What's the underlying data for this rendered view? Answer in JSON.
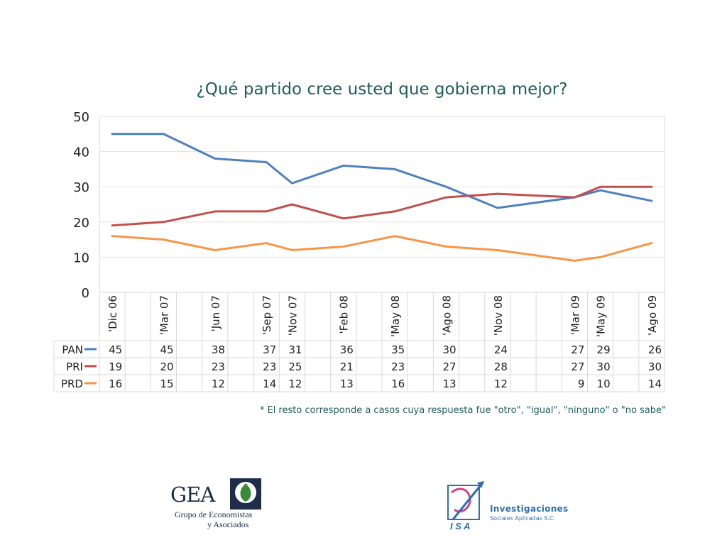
{
  "chart_data": {
    "type": "line",
    "title": "¿Qué partido cree usted que gobierna mejor?",
    "categories": [
      "'Dic 06",
      "",
      "'Mar 07",
      "",
      "'Jun 07",
      "",
      "'Sep 07",
      "'Nov 07",
      "",
      "'Feb 08",
      "",
      "'May 08",
      "",
      "'Ago 08",
      "",
      "'Nov 08",
      "",
      "",
      "'Mar 09",
      "'May 09",
      "",
      "'Ago 09"
    ],
    "x_positions": [
      0,
      1,
      2,
      3,
      4,
      5,
      6,
      7,
      8,
      9,
      10,
      11,
      12,
      13,
      14,
      15,
      16,
      17,
      18,
      19,
      20,
      21
    ],
    "ylim": [
      0,
      50
    ],
    "yticks": [
      0,
      10,
      20,
      30,
      40,
      50
    ],
    "grid": true,
    "legend": "table-left",
    "series": [
      {
        "name": "PAN",
        "color": "#4f81bd",
        "points": [
          [
            0,
            45
          ],
          [
            2,
            45
          ],
          [
            4,
            38
          ],
          [
            6,
            37
          ],
          [
            7,
            31
          ],
          [
            9,
            36
          ],
          [
            11,
            35
          ],
          [
            13,
            30
          ],
          [
            15,
            24
          ],
          [
            18,
            27
          ],
          [
            19,
            29
          ],
          [
            21,
            26
          ]
        ]
      },
      {
        "name": "PRI",
        "color": "#c0504d",
        "points": [
          [
            0,
            19
          ],
          [
            2,
            20
          ],
          [
            4,
            23
          ],
          [
            6,
            23
          ],
          [
            7,
            25
          ],
          [
            9,
            21
          ],
          [
            11,
            23
          ],
          [
            13,
            27
          ],
          [
            15,
            28
          ],
          [
            18,
            27
          ],
          [
            19,
            30
          ],
          [
            21,
            30
          ]
        ]
      },
      {
        "name": "PRD",
        "color": "#f79646",
        "points": [
          [
            0,
            16
          ],
          [
            2,
            15
          ],
          [
            4,
            12
          ],
          [
            6,
            14
          ],
          [
            7,
            12
          ],
          [
            9,
            13
          ],
          [
            11,
            16
          ],
          [
            13,
            13
          ],
          [
            15,
            12
          ],
          [
            18,
            9
          ],
          [
            19,
            10
          ],
          [
            21,
            14
          ]
        ]
      }
    ]
  },
  "footnote": "* El resto corresponde a casos cuya respuesta fue \"otro\", \"igual\", \"ninguno\" o \"no sabe\"",
  "logos": {
    "gea": {
      "mark": "GEA",
      "line1": "Grupo de Economistas",
      "line2": "y Asociados"
    },
    "isa": {
      "mark": "ISA",
      "line1": "Investigaciones",
      "line2": "Sociales Aplicadas S.C."
    }
  }
}
